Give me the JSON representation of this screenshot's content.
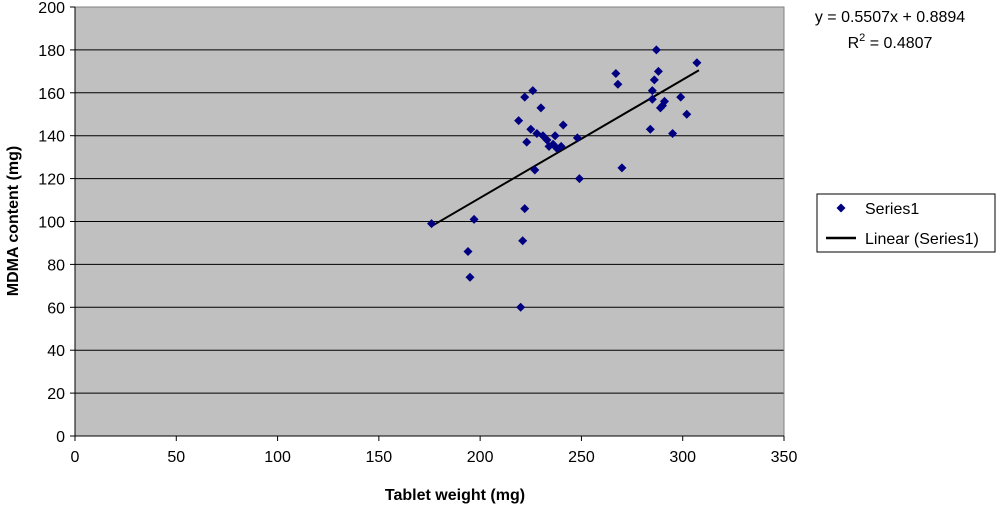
{
  "chart_data": {
    "type": "scatter",
    "xlabel": "Tablet weight (mg)",
    "ylabel": "MDMA content (mg)",
    "xlim": [
      0,
      350
    ],
    "ylim": [
      0,
      200
    ],
    "xticks": [
      0,
      50,
      100,
      150,
      200,
      250,
      300,
      350
    ],
    "yticks": [
      0,
      20,
      40,
      60,
      80,
      100,
      120,
      140,
      160,
      180,
      200
    ],
    "grid": true,
    "legend_position": "right",
    "series": [
      {
        "name": "Series1",
        "color": "#000080",
        "marker": "diamond",
        "points": [
          [
            176,
            99
          ],
          [
            194,
            86
          ],
          [
            195,
            74
          ],
          [
            197,
            101
          ],
          [
            219,
            147
          ],
          [
            220,
            60
          ],
          [
            221,
            91
          ],
          [
            222,
            158
          ],
          [
            222,
            106
          ],
          [
            223,
            137
          ],
          [
            225,
            143
          ],
          [
            226,
            161
          ],
          [
            227,
            124
          ],
          [
            228,
            141
          ],
          [
            230,
            153
          ],
          [
            231,
            140
          ],
          [
            233,
            138
          ],
          [
            234,
            135
          ],
          [
            236,
            136
          ],
          [
            237,
            140
          ],
          [
            238,
            134
          ],
          [
            240,
            135
          ],
          [
            241,
            145
          ],
          [
            248,
            139
          ],
          [
            249,
            120
          ],
          [
            267,
            169
          ],
          [
            268,
            164
          ],
          [
            270,
            125
          ],
          [
            284,
            143
          ],
          [
            285,
            157
          ],
          [
            285,
            161
          ],
          [
            286,
            166
          ],
          [
            287,
            180
          ],
          [
            288,
            170
          ],
          [
            289,
            153
          ],
          [
            290,
            154
          ],
          [
            291,
            156
          ],
          [
            295,
            141
          ],
          [
            299,
            158
          ],
          [
            302,
            150
          ],
          [
            307,
            174
          ]
        ]
      }
    ],
    "trendline": {
      "name": "Linear (Series1)",
      "color": "#000000",
      "slope": 0.5507,
      "intercept": 0.8894,
      "x_range": [
        176,
        308
      ]
    },
    "annotation": {
      "equation": "y = 0.5507x + 0.8894",
      "r2_prefix": "R",
      "r2_sup": "2",
      "r2_value": " = 0.4807"
    }
  }
}
